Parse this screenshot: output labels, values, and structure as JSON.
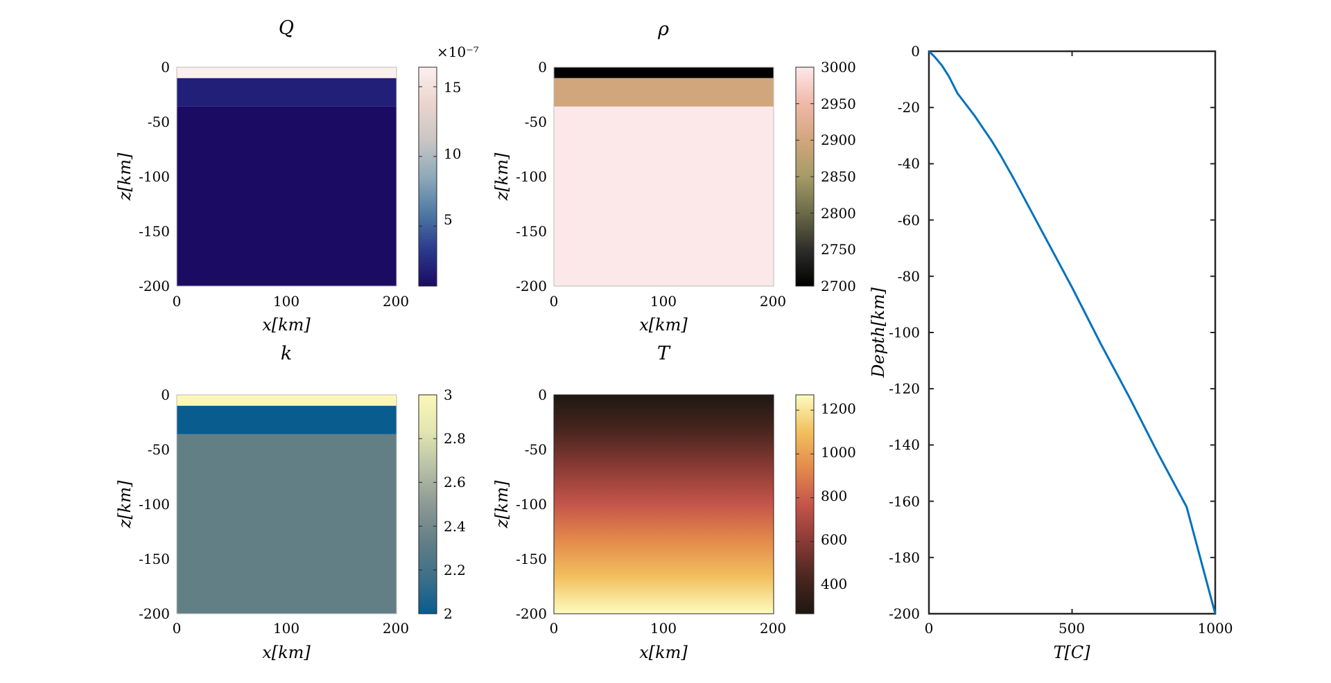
{
  "figure": {
    "panels": [
      {
        "title": "Q",
        "xlabel": "x[km]",
        "ylabel": "z[km]",
        "xticks": [
          "0",
          "100",
          "200"
        ],
        "yticks": [
          "0",
          "-50",
          "-100",
          "-150",
          "-200"
        ],
        "xlim": [
          0,
          200
        ],
        "ylim": [
          -200,
          0
        ],
        "colorbar": {
          "ticks": [
            "5",
            "10",
            "15"
          ],
          "tick_values": [
            5,
            10,
            15
          ],
          "range": [
            0.7,
            16.4
          ],
          "exponent": "×10⁻⁷",
          "colormap": "cmocean-thermal-like"
        },
        "layers": [
          {
            "top": 0,
            "bottom": -10,
            "value": 16.4,
            "color": "#fcf0ee"
          },
          {
            "top": -10,
            "bottom": -36,
            "value": 2.0,
            "color": "#221f79"
          },
          {
            "top": -36,
            "bottom": -200,
            "value": 0.7,
            "color": "#1b0b63"
          }
        ]
      },
      {
        "title": "ρ",
        "xlabel": "x[km]",
        "ylabel": "z[km]",
        "xticks": [
          "0",
          "100",
          "200"
        ],
        "yticks": [
          "0",
          "-50",
          "-100",
          "-150",
          "-200"
        ],
        "xlim": [
          0,
          200
        ],
        "ylim": [
          -200,
          0
        ],
        "colorbar": {
          "ticks": [
            "3000",
            "2950",
            "2900",
            "2850",
            "2800",
            "2750",
            "2700"
          ],
          "tick_values": [
            3000,
            2950,
            2900,
            2850,
            2800,
            2750,
            2700
          ],
          "range": [
            2700,
            3000
          ],
          "exponent": "",
          "colormap": "pink-tan"
        },
        "layers": [
          {
            "top": 0,
            "bottom": -10,
            "value": 2700,
            "color": "#000000"
          },
          {
            "top": -10,
            "bottom": -36,
            "value": 2900,
            "color": "#d2a67c"
          },
          {
            "top": -36,
            "bottom": -200,
            "value": 3000,
            "color": "#fde8e9"
          }
        ]
      },
      {
        "title": "k",
        "xlabel": "x[km]",
        "ylabel": "z[km]",
        "xticks": [
          "0",
          "100",
          "200"
        ],
        "yticks": [
          "0",
          "-50",
          "-100",
          "-150",
          "-200"
        ],
        "xlim": [
          0,
          200
        ],
        "ylim": [
          -200,
          0
        ],
        "colorbar": {
          "ticks": [
            "3",
            "2.8",
            "2.6",
            "2.4",
            "2.2",
            "2"
          ],
          "tick_values": [
            3,
            2.8,
            2.6,
            2.4,
            2.2,
            2
          ],
          "range": [
            2,
            3
          ],
          "exponent": "",
          "colormap": "blue-yellow"
        },
        "layers": [
          {
            "top": 0,
            "bottom": -10,
            "value": 3.0,
            "color": "#fcf7b8"
          },
          {
            "top": -10,
            "bottom": -36,
            "value": 2.0,
            "color": "#085c8e"
          },
          {
            "top": -36,
            "bottom": -200,
            "value": 2.3,
            "color": "#637f86"
          }
        ]
      },
      {
        "title": "T",
        "xlabel": "x[km]",
        "ylabel": "z[km]",
        "xticks": [
          "0",
          "100",
          "200"
        ],
        "yticks": [
          "0",
          "-50",
          "-100",
          "-150",
          "-200"
        ],
        "xlim": [
          0,
          200
        ],
        "ylim": [
          -200,
          0
        ],
        "colorbar": {
          "ticks": [
            "1200",
            "1000",
            "800",
            "600",
            "400"
          ],
          "tick_values": [
            1200,
            1000,
            800,
            600,
            400
          ],
          "range": [
            270,
            1270
          ],
          "exponent": "",
          "colormap": "solar"
        },
        "gradient": {
          "top_value": 270,
          "bottom_value": 1270
        }
      }
    ],
    "colormaps": {
      "cmocean-thermal-like": [
        "#1b0b63",
        "#2a3a8c",
        "#4f79a5",
        "#8eaab8",
        "#c9c6c4",
        "#ead5cd",
        "#fcf0ee"
      ],
      "pink-tan": [
        "#000000",
        "#2e2e2a",
        "#6b6a48",
        "#a59b68",
        "#d2a67c",
        "#f0b8a8",
        "#fde8e9"
      ],
      "blue-yellow": [
        "#085c8e",
        "#3d6f89",
        "#637f86",
        "#8c9a95",
        "#b8c0a6",
        "#e2e6b1",
        "#fcf7b8"
      ],
      "solar": [
        "#1e1711",
        "#4a261f",
        "#8b3b35",
        "#c5554a",
        "#e48a4c",
        "#f2c05e",
        "#fdfcc0"
      ]
    },
    "profile": {
      "xlabel": "T[C]",
      "ylabel": "Depth[km]",
      "xticks": [
        "0",
        "500",
        "1000"
      ],
      "yticks": [
        "0",
        "-20",
        "-40",
        "-60",
        "-80",
        "-100",
        "-120",
        "-140",
        "-160",
        "-180",
        "-200"
      ]
    }
  },
  "chart_data": [
    {
      "type": "heatmap",
      "title": "Q",
      "xlabel": "x[km]",
      "ylabel": "z[km]",
      "xlim": [
        0,
        200
      ],
      "ylim": [
        -200,
        0
      ],
      "colorbar_label": "×10⁻⁷",
      "layers": [
        {
          "depth_range": [
            0,
            -10
          ],
          "value": 16.4
        },
        {
          "depth_range": [
            -10,
            -36
          ],
          "value": 2.0
        },
        {
          "depth_range": [
            -36,
            -200
          ],
          "value": 0.7
        }
      ]
    },
    {
      "type": "heatmap",
      "title": "ρ",
      "xlabel": "x[km]",
      "ylabel": "z[km]",
      "xlim": [
        0,
        200
      ],
      "ylim": [
        -200,
        0
      ],
      "layers": [
        {
          "depth_range": [
            0,
            -10
          ],
          "value": 2700
        },
        {
          "depth_range": [
            -10,
            -36
          ],
          "value": 2900
        },
        {
          "depth_range": [
            -36,
            -200
          ],
          "value": 3000
        }
      ]
    },
    {
      "type": "heatmap",
      "title": "k",
      "xlabel": "x[km]",
      "ylabel": "z[km]",
      "xlim": [
        0,
        200
      ],
      "ylim": [
        -200,
        0
      ],
      "layers": [
        {
          "depth_range": [
            0,
            -10
          ],
          "value": 3.0
        },
        {
          "depth_range": [
            -10,
            -36
          ],
          "value": 2.0
        },
        {
          "depth_range": [
            -36,
            -200
          ],
          "value": 2.3
        }
      ]
    },
    {
      "type": "heatmap",
      "title": "T",
      "xlabel": "x[km]",
      "ylabel": "z[km]",
      "xlim": [
        0,
        200
      ],
      "ylim": [
        -200,
        0
      ],
      "gradient_range": [
        270,
        1270
      ]
    },
    {
      "type": "line",
      "title": "",
      "xlabel": "T[C]",
      "ylabel": "Depth[km]",
      "xlim": [
        0,
        1000
      ],
      "ylim": [
        -200,
        0
      ],
      "series": [
        {
          "color": "#0072bd",
          "x": [
            0,
            20,
            45,
            70,
            100,
            130,
            160,
            190,
            220,
            250,
            300,
            400,
            500,
            600,
            700,
            800,
            900,
            1000
          ],
          "y": [
            0,
            -2,
            -5,
            -9,
            -15,
            -19,
            -23,
            -27.5,
            -32,
            -37,
            -46,
            -65,
            -84,
            -104,
            -123,
            -143,
            -162,
            -200
          ]
        }
      ]
    }
  ]
}
